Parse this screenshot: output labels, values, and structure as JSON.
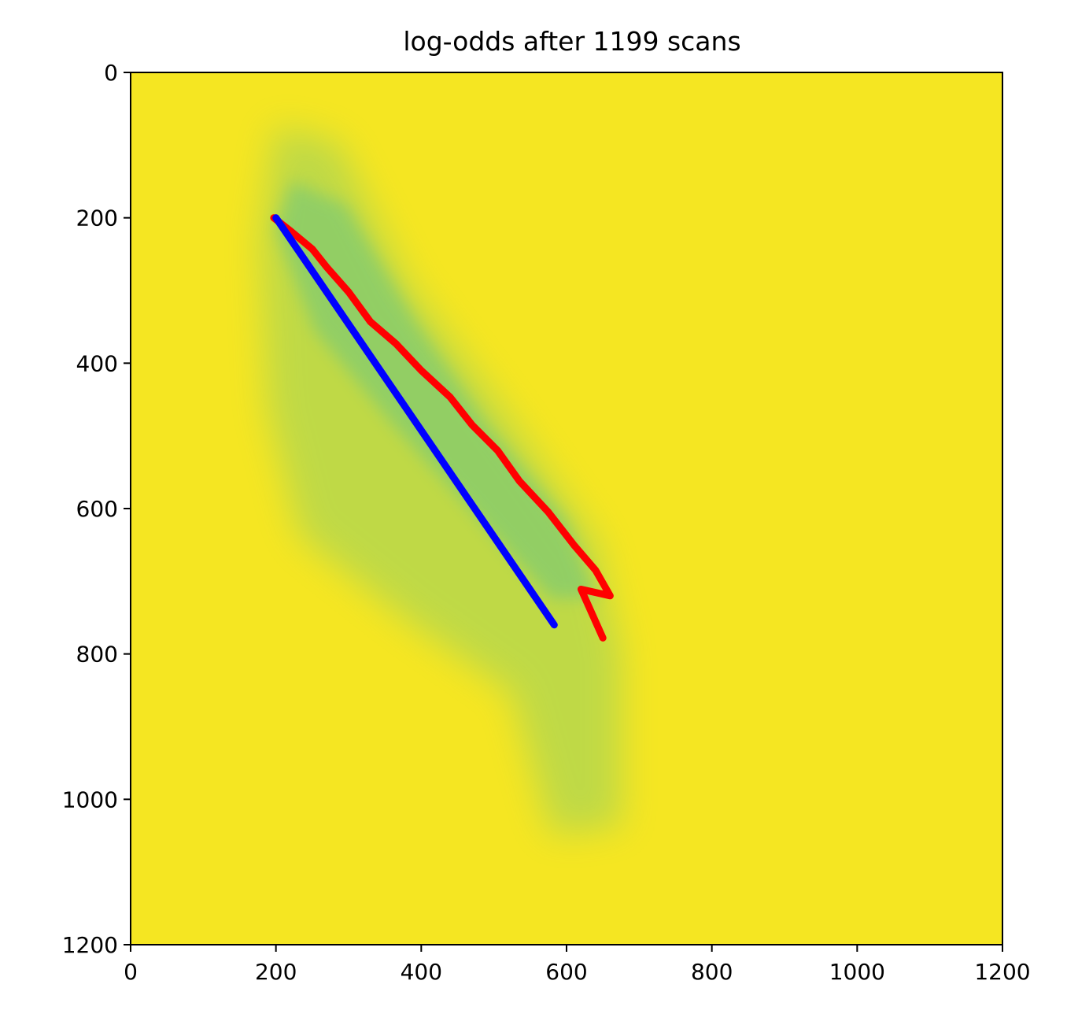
{
  "chart_data": {
    "type": "heatmap",
    "title": "log-odds after 1199 scans",
    "xlabel": "",
    "ylabel": "",
    "xlim": [
      0,
      1200
    ],
    "ylim": [
      1200,
      0
    ],
    "xticks": [
      0,
      200,
      400,
      600,
      800,
      1000,
      1200
    ],
    "yticks": [
      0,
      200,
      400,
      600,
      800,
      1000,
      1200
    ],
    "grid": false,
    "colormap": "viridis",
    "background_color": "#f5e622",
    "free_space_color": "#5cc28a",
    "series": [
      {
        "color": "#ff0000",
        "points": [
          [
            197,
            200
          ],
          [
            220,
            218
          ],
          [
            250,
            243
          ],
          [
            270,
            268
          ],
          [
            300,
            302
          ],
          [
            330,
            343
          ],
          [
            365,
            373
          ],
          [
            400,
            410
          ],
          [
            440,
            447
          ],
          [
            470,
            485
          ],
          [
            505,
            520
          ],
          [
            535,
            562
          ],
          [
            575,
            605
          ],
          [
            610,
            650
          ],
          [
            640,
            685
          ],
          [
            660,
            720
          ],
          [
            620,
            711
          ],
          [
            650,
            778
          ]
        ]
      },
      {
        "color": "#0000ff",
        "points": [
          [
            200,
            200
          ],
          [
            583,
            760
          ]
        ]
      }
    ]
  }
}
